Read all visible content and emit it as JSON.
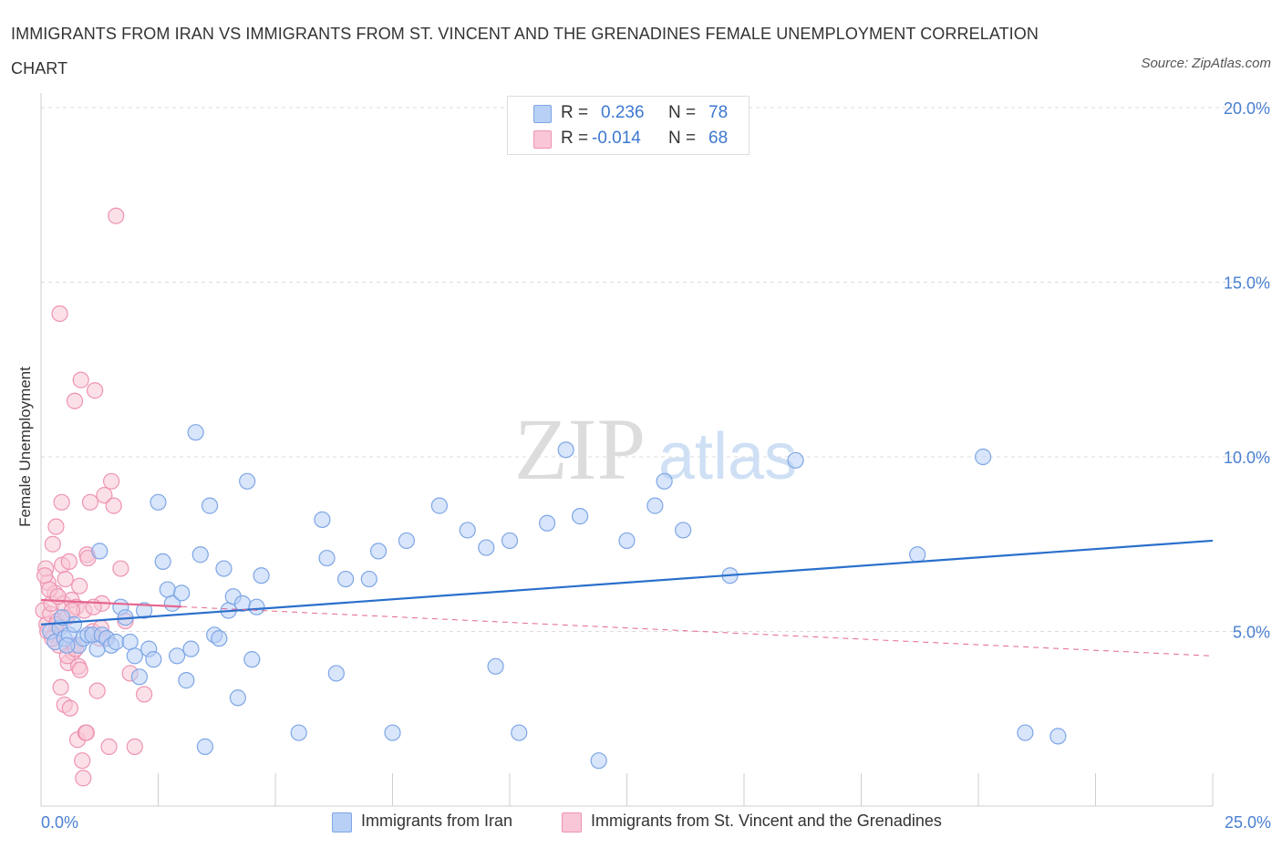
{
  "title": "IMMIGRANTS FROM IRAN VS IMMIGRANTS FROM ST. VINCENT AND THE GRENADINES FEMALE UNEMPLOYMENT CORRELATION CHART",
  "source": "Source: ZipAtlas.com",
  "watermark": {
    "zip": "ZIP",
    "atlas": "atlas"
  },
  "colors": {
    "iran_fill": "#b8d0f5",
    "iran_stroke": "#7ea6e6",
    "iran_line": "#2a6fcc",
    "svg_fill": "#f8c6d6",
    "svg_stroke": "#ee93b1",
    "svg_line": "#e5668f",
    "axis_text": "#4a7fd0",
    "grid": "#dddddd"
  },
  "legend_top": {
    "rows": [
      {
        "r_label": "R =",
        "r_value": "0.236",
        "n_label": "N =",
        "n_value": "78"
      },
      {
        "r_label": "R =",
        "r_value": "-0.014",
        "n_label": "N =",
        "n_value": "68"
      }
    ]
  },
  "legend_bottom": {
    "items": [
      {
        "label": "Immigrants from Iran"
      },
      {
        "label": "Immigrants from St. Vincent and the Grenadines"
      }
    ]
  },
  "chart_data": {
    "type": "scatter",
    "title": "IMMIGRANTS FROM IRAN VS IMMIGRANTS FROM ST. VINCENT AND THE GRENADINES FEMALE UNEMPLOYMENT CORRELATION CHART",
    "xlabel": "",
    "ylabel": "Female Unemployment",
    "xlim": [
      0,
      25
    ],
    "ylim": [
      0,
      20
    ],
    "x_tick_labels": [
      "0.0%",
      "25.0%"
    ],
    "y_ticks": [
      {
        "value": 5,
        "label": "5.0%"
      },
      {
        "value": 10,
        "label": "10.0%"
      },
      {
        "value": 15,
        "label": "15.0%"
      },
      {
        "value": 20,
        "label": "20.0%"
      }
    ],
    "grid": true,
    "series": [
      {
        "name": "Immigrants from Iran",
        "r": 0.236,
        "n": 78,
        "trend": {
          "x": [
            0.0,
            25.0
          ],
          "y": [
            5.2,
            7.6
          ]
        },
        "points": [
          [
            0.2,
            5.0
          ],
          [
            0.3,
            4.7
          ],
          [
            0.4,
            5.1
          ],
          [
            0.5,
            4.8
          ],
          [
            0.6,
            4.9
          ],
          [
            0.7,
            5.2
          ],
          [
            0.8,
            4.6
          ],
          [
            0.9,
            4.8
          ],
          [
            1.0,
            4.9
          ],
          [
            1.1,
            4.9
          ],
          [
            1.2,
            4.5
          ],
          [
            1.3,
            4.9
          ],
          [
            1.4,
            4.8
          ],
          [
            1.5,
            4.6
          ],
          [
            1.6,
            4.7
          ],
          [
            1.7,
            5.7
          ],
          [
            1.8,
            5.4
          ],
          [
            1.9,
            4.7
          ],
          [
            2.0,
            4.3
          ],
          [
            2.1,
            3.7
          ],
          [
            2.2,
            5.6
          ],
          [
            2.3,
            4.5
          ],
          [
            2.4,
            4.2
          ],
          [
            2.5,
            8.7
          ],
          [
            2.6,
            7.0
          ],
          [
            2.7,
            6.2
          ],
          [
            2.8,
            5.8
          ],
          [
            2.9,
            4.3
          ],
          [
            3.0,
            6.1
          ],
          [
            3.1,
            3.6
          ],
          [
            3.2,
            4.5
          ],
          [
            3.3,
            10.7
          ],
          [
            3.4,
            7.2
          ],
          [
            3.5,
            1.7
          ],
          [
            3.6,
            8.6
          ],
          [
            3.7,
            4.9
          ],
          [
            3.8,
            4.8
          ],
          [
            3.9,
            6.8
          ],
          [
            4.0,
            5.6
          ],
          [
            4.1,
            6.0
          ],
          [
            4.2,
            3.1
          ],
          [
            4.3,
            5.8
          ],
          [
            4.4,
            9.3
          ],
          [
            4.5,
            4.2
          ],
          [
            4.6,
            5.7
          ],
          [
            4.7,
            6.6
          ],
          [
            5.5,
            2.1
          ],
          [
            6.0,
            8.2
          ],
          [
            6.1,
            7.1
          ],
          [
            6.3,
            3.8
          ],
          [
            6.5,
            6.5
          ],
          [
            7.0,
            6.5
          ],
          [
            7.2,
            7.3
          ],
          [
            7.5,
            2.1
          ],
          [
            7.8,
            7.6
          ],
          [
            8.5,
            8.6
          ],
          [
            9.1,
            7.9
          ],
          [
            9.5,
            7.4
          ],
          [
            9.7,
            4.0
          ],
          [
            10.0,
            7.6
          ],
          [
            10.2,
            2.1
          ],
          [
            10.8,
            8.1
          ],
          [
            11.2,
            10.2
          ],
          [
            11.5,
            8.3
          ],
          [
            11.9,
            1.3
          ],
          [
            12.5,
            7.6
          ],
          [
            13.1,
            8.6
          ],
          [
            13.3,
            9.3
          ],
          [
            13.7,
            7.9
          ],
          [
            14.7,
            6.6
          ],
          [
            16.1,
            9.9
          ],
          [
            18.7,
            7.2
          ],
          [
            20.1,
            10.0
          ],
          [
            21.0,
            2.1
          ],
          [
            21.7,
            2.0
          ],
          [
            0.55,
            4.6
          ],
          [
            1.25,
            7.3
          ],
          [
            0.45,
            5.4
          ]
        ]
      },
      {
        "name": "Immigrants from St. Vincent and the Grenadines",
        "r": -0.014,
        "n": 68,
        "trend": {
          "x": [
            0.0,
            25.0
          ],
          "y": [
            5.9,
            4.3
          ]
        },
        "points": [
          [
            0.05,
            5.6
          ],
          [
            0.1,
            6.8
          ],
          [
            0.12,
            5.2
          ],
          [
            0.15,
            6.4
          ],
          [
            0.2,
            5.5
          ],
          [
            0.22,
            5.8
          ],
          [
            0.25,
            7.5
          ],
          [
            0.28,
            4.9
          ],
          [
            0.3,
            6.1
          ],
          [
            0.32,
            8.0
          ],
          [
            0.35,
            5.3
          ],
          [
            0.38,
            4.6
          ],
          [
            0.4,
            14.1
          ],
          [
            0.42,
            3.4
          ],
          [
            0.45,
            6.9
          ],
          [
            0.48,
            5.8
          ],
          [
            0.5,
            2.9
          ],
          [
            0.52,
            6.5
          ],
          [
            0.55,
            5.4
          ],
          [
            0.58,
            4.1
          ],
          [
            0.6,
            7.0
          ],
          [
            0.62,
            2.8
          ],
          [
            0.65,
            5.9
          ],
          [
            0.68,
            4.4
          ],
          [
            0.7,
            4.6
          ],
          [
            0.72,
            11.6
          ],
          [
            0.75,
            5.7
          ],
          [
            0.78,
            1.9
          ],
          [
            0.8,
            4.0
          ],
          [
            0.82,
            6.3
          ],
          [
            0.85,
            12.2
          ],
          [
            0.88,
            1.3
          ],
          [
            0.9,
            0.8
          ],
          [
            0.92,
            5.6
          ],
          [
            0.95,
            2.1
          ],
          [
            0.98,
            7.2
          ],
          [
            1.0,
            7.1
          ],
          [
            1.05,
            8.7
          ],
          [
            1.1,
            5.0
          ],
          [
            1.15,
            11.9
          ],
          [
            1.2,
            3.3
          ],
          [
            1.25,
            4.8
          ],
          [
            1.3,
            5.8
          ],
          [
            1.35,
            8.9
          ],
          [
            1.4,
            4.8
          ],
          [
            1.45,
            1.7
          ],
          [
            1.5,
            9.3
          ],
          [
            1.55,
            8.6
          ],
          [
            1.6,
            16.9
          ],
          [
            1.7,
            6.8
          ],
          [
            1.8,
            5.3
          ],
          [
            1.9,
            3.8
          ],
          [
            2.0,
            1.7
          ],
          [
            2.2,
            3.2
          ],
          [
            0.08,
            6.6
          ],
          [
            0.18,
            6.2
          ],
          [
            0.33,
            5.2
          ],
          [
            0.44,
            8.7
          ],
          [
            0.56,
            4.3
          ],
          [
            0.66,
            5.6
          ],
          [
            0.74,
            4.5
          ],
          [
            0.83,
            3.9
          ],
          [
            0.97,
            2.1
          ],
          [
            1.12,
            5.7
          ],
          [
            1.28,
            5.1
          ],
          [
            0.14,
            5.0
          ],
          [
            0.24,
            4.8
          ],
          [
            0.36,
            6.0
          ]
        ]
      }
    ]
  }
}
